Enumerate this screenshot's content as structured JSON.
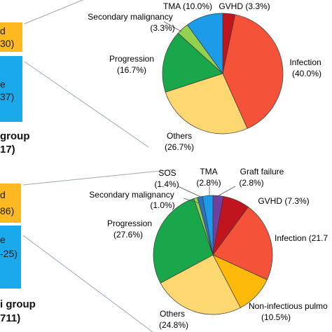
{
  "colors": {
    "gvhd": "#c0141f",
    "infection": "#f5523a",
    "others": "#fdd870",
    "progression": "#1aa64a",
    "secondary": "#93d24e",
    "tma": "#1c9be8",
    "sos": "#2c70c0",
    "graft": "#7040a0",
    "nonInfectious": "#fdb90a",
    "barOrange": "#fdb822",
    "barBlue": "#1aa9ea",
    "connector": "#9aa9b6"
  },
  "left_panel": {
    "top": {
      "bar1_line1": "d",
      "bar1_line2": "30)",
      "bar2_line1": "e",
      "bar2_line2": "37)",
      "group_line1": "group",
      "group_line2": "17)"
    },
    "bottom": {
      "bar1_line1": "d",
      "bar1_line2": "86)",
      "bar2_line1": "e",
      "bar2_line2": "-25)",
      "group_line1": "i group",
      "group_line2": "711)"
    }
  },
  "chart_data": [
    {
      "type": "pie",
      "slices": [
        {
          "label": "GVHD",
          "value": 3.3,
          "display": "(3.3%)"
        },
        {
          "label": "Infection",
          "value": 40.0,
          "display": "(40.0%)"
        },
        {
          "label": "Others",
          "value": 26.7,
          "display": "(26.7%)"
        },
        {
          "label": "Progression",
          "value": 16.7,
          "display": "(16.7%)"
        },
        {
          "label": "Secondary malignancy",
          "value": 3.3,
          "display": "(3.3%)"
        },
        {
          "label": "TMA",
          "value": 10.0,
          "display": "(10.0%)"
        }
      ]
    },
    {
      "type": "pie",
      "slices": [
        {
          "label": "GVHD",
          "value": 7.3,
          "display": "(7.3%)"
        },
        {
          "label": "Infection",
          "value": 21.7,
          "display": "(21.7"
        },
        {
          "label": "Non-infectious pulmo",
          "value": 10.5,
          "display": "(10.5%)"
        },
        {
          "label": "Others",
          "value": 24.8,
          "display": "(24.8%)"
        },
        {
          "label": "Progression",
          "value": 27.6,
          "display": "(27.6%)"
        },
        {
          "label": "Secondary malignancy",
          "value": 1.0,
          "display": "(1.0%)"
        },
        {
          "label": "SOS",
          "value": 1.4,
          "display": "(1.4%)"
        },
        {
          "label": "TMA",
          "value": 2.8,
          "display": "(2.8%)"
        },
        {
          "label": "Graft failure",
          "value": 2.8,
          "display": "(2.8%)"
        }
      ]
    }
  ]
}
